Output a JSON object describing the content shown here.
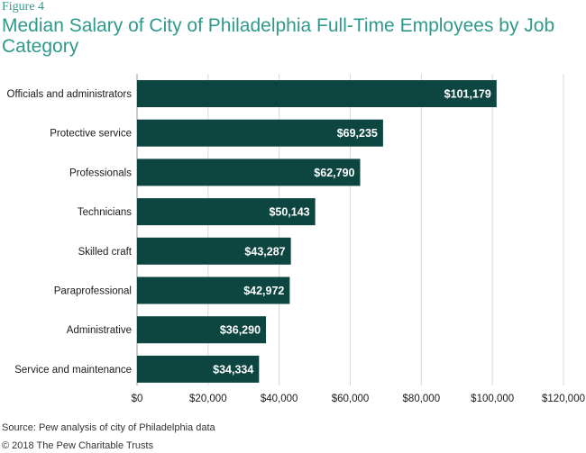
{
  "figure_label": "Figure 4",
  "source": "Source: Pew analysis of city of Philadelphia data",
  "copyright": "© 2018 The Pew Charitable Trusts",
  "colors": {
    "bar": "#0d4541",
    "title": "#2f9a8c",
    "grid": "#d9d9d9"
  },
  "chart_data": {
    "type": "bar",
    "orientation": "horizontal",
    "title": "Median Salary of City of Philadelphia Full-Time Employees by Job Category",
    "categories": [
      "Officials and administrators",
      "Protective service",
      "Professionals",
      "Technicians",
      "Skilled craft",
      "Paraprofessional",
      "Administrative",
      "Service and maintenance"
    ],
    "values": [
      101179,
      69235,
      62790,
      50143,
      43287,
      42972,
      36290,
      34334
    ],
    "data_labels": [
      "$101,179",
      "$69,235",
      "$62,790",
      "$50,143",
      "$43,287",
      "$42,972",
      "$36,290",
      "$34,334"
    ],
    "x_ticks": [
      0,
      20000,
      40000,
      60000,
      80000,
      100000,
      120000
    ],
    "x_tick_labels": [
      "$0",
      "$20,000",
      "$40,000",
      "$60,000",
      "$80,000",
      "$100,000",
      "$120,000"
    ],
    "xlim": [
      0,
      120000
    ],
    "xlabel": "",
    "ylabel": "",
    "grid": "vertical",
    "legend": "none"
  }
}
